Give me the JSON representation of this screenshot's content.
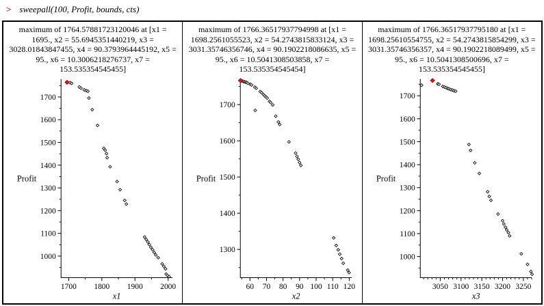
{
  "prompt": {
    "symbol": ">",
    "command": "sweepall(100, Profit, bounds, cts)"
  },
  "colors": {
    "prompt_red": "#cc0000",
    "max_point": "#ee1111",
    "max_point_stroke": "#990000",
    "point_stroke": "#1a1a1a",
    "point_fill": "#ffffff",
    "axis": "#000000",
    "border": "#000000"
  },
  "chart_data": [
    {
      "type": "scatter",
      "title": "maximum of 1764.57881723120046 at [x1 = 1695., x2 = 55.6945351440219, x3 = 3028.01843847455, x4 = 90.3793964445192, x5 = 95., x6 = 10.3006218276737, x7 = 153.535354545455]",
      "xlabel": "x1",
      "ylabel": "Profit",
      "xlim": [
        1677,
        2013
      ],
      "ylim": [
        905,
        1778
      ],
      "xticks": [
        1700,
        1800,
        1900,
        2000
      ],
      "yticks": [
        1000,
        1100,
        1200,
        1300,
        1400,
        1500,
        1600,
        1700
      ],
      "xminor_step": 50,
      "yminor_step": 50,
      "grid": false,
      "legend": false,
      "max_point": [
        1695,
        1764.58
      ],
      "points": [
        [
          1704,
          1763
        ],
        [
          1709,
          1760
        ],
        [
          1732,
          1744
        ],
        [
          1737,
          1739
        ],
        [
          1747,
          1731
        ],
        [
          1753,
          1728
        ],
        [
          1758,
          1725
        ],
        [
          1761,
          1695
        ],
        [
          1771,
          1644
        ],
        [
          1787,
          1575
        ],
        [
          1806,
          1474
        ],
        [
          1810,
          1466
        ],
        [
          1814,
          1451
        ],
        [
          1816,
          1433
        ],
        [
          1825,
          1393
        ],
        [
          1846,
          1328
        ],
        [
          1855,
          1292
        ],
        [
          1869,
          1245
        ],
        [
          1874,
          1229
        ],
        [
          1929,
          1084
        ],
        [
          1934,
          1073
        ],
        [
          1939,
          1062
        ],
        [
          1943,
          1051
        ],
        [
          1948,
          1039
        ],
        [
          1953,
          1028
        ],
        [
          1958,
          1016
        ],
        [
          1963,
          1005
        ],
        [
          1970,
          993
        ],
        [
          1982,
          966
        ],
        [
          1987,
          955
        ],
        [
          1992,
          944
        ],
        [
          1994,
          921
        ],
        [
          1998,
          915
        ],
        [
          2003,
          910
        ]
      ]
    },
    {
      "type": "scatter",
      "title": "maximum of 1766.36517937794998 at [x1 = 1698.2561055523, x2 = 54.2743815833124, x3 = 3031.35746356746, x4 = 90.1902218086635, x5 = 95., x6 = 10.5041308503858, x7 = 153.535354545454]",
      "xlabel": "x2",
      "ylabel": "Profit",
      "xlim": [
        54.2,
        121.5
      ],
      "ylim": [
        1222,
        1770
      ],
      "xticks": [
        60,
        70,
        80,
        90,
        100,
        110,
        120
      ],
      "yticks": [
        1300,
        1400,
        1500,
        1600,
        1700
      ],
      "xminor_step": 5,
      "yminor_step": 50,
      "grid": false,
      "legend": false,
      "max_point": [
        54.3,
        1766.37
      ],
      "points": [
        [
          55.3,
          1765
        ],
        [
          56.0,
          1764
        ],
        [
          56.7,
          1763
        ],
        [
          57.4,
          1762
        ],
        [
          58.1,
          1761
        ],
        [
          58.8,
          1759
        ],
        [
          60.3,
          1756
        ],
        [
          61.0,
          1754
        ],
        [
          63.0,
          1748
        ],
        [
          63.8,
          1745
        ],
        [
          66.2,
          1736
        ],
        [
          67.0,
          1733
        ],
        [
          68.3,
          1727
        ],
        [
          69.0,
          1724
        ],
        [
          69.7,
          1721
        ],
        [
          70.4,
          1718
        ],
        [
          71.8,
          1709
        ],
        [
          72.5,
          1706
        ],
        [
          73.8,
          1699
        ],
        [
          63.2,
          1684
        ],
        [
          75.6,
          1668
        ],
        [
          77.2,
          1652
        ],
        [
          78.0,
          1645
        ],
        [
          83.6,
          1597
        ],
        [
          87.6,
          1566
        ],
        [
          88.4,
          1557
        ],
        [
          89.2,
          1549
        ],
        [
          90.0,
          1540
        ],
        [
          90.8,
          1532
        ],
        [
          110.6,
          1332
        ],
        [
          112.1,
          1311
        ],
        [
          113.3,
          1299
        ],
        [
          114.3,
          1287
        ],
        [
          115.4,
          1275
        ],
        [
          116.4,
          1262
        ],
        [
          119.1,
          1243
        ],
        [
          119.9,
          1236
        ]
      ]
    },
    {
      "type": "scatter",
      "title": "maximum of 1766.36517937795180 at [x1 = 1698.25610554755, x2 = 54.2743815854299, x3 = 3031.35746356357, x4 = 90.1902218089499, x5 = 95., x6 = 10.5041308500696, x7 = 153.535354545455]",
      "xlabel": "x3",
      "ylabel": "Profit",
      "xlim": [
        3002,
        3270
      ],
      "ylim": [
        908,
        1772
      ],
      "xticks": [
        3050,
        3100,
        3150,
        3200,
        3250
      ],
      "yticks": [
        1000,
        1100,
        1200,
        1300,
        1400,
        1500,
        1600,
        1700
      ],
      "xminor_step": 10,
      "yminor_step": 50,
      "grid": false,
      "legend": false,
      "max_point": [
        3031.4,
        1766.37
      ],
      "points": [
        [
          3005,
          1746
        ],
        [
          3044,
          1752
        ],
        [
          3047,
          1750
        ],
        [
          3056,
          1741
        ],
        [
          3060,
          1738
        ],
        [
          3064,
          1735
        ],
        [
          3068,
          1732
        ],
        [
          3071,
          1730
        ],
        [
          3075,
          1727
        ],
        [
          3079,
          1725
        ],
        [
          3083,
          1722
        ],
        [
          3087,
          1720
        ],
        [
          3119,
          1488
        ],
        [
          3123,
          1462
        ],
        [
          3133,
          1408
        ],
        [
          3144,
          1362
        ],
        [
          3164,
          1282
        ],
        [
          3168,
          1262
        ],
        [
          3172,
          1245
        ],
        [
          3189,
          1185
        ],
        [
          3200,
          1156
        ],
        [
          3203,
          1142
        ],
        [
          3207,
          1128
        ],
        [
          3210,
          1116
        ],
        [
          3214,
          1104
        ],
        [
          3217,
          1090
        ],
        [
          3245,
          1012
        ],
        [
          3260,
          966
        ],
        [
          3268,
          935
        ],
        [
          3271,
          923
        ]
      ]
    }
  ]
}
